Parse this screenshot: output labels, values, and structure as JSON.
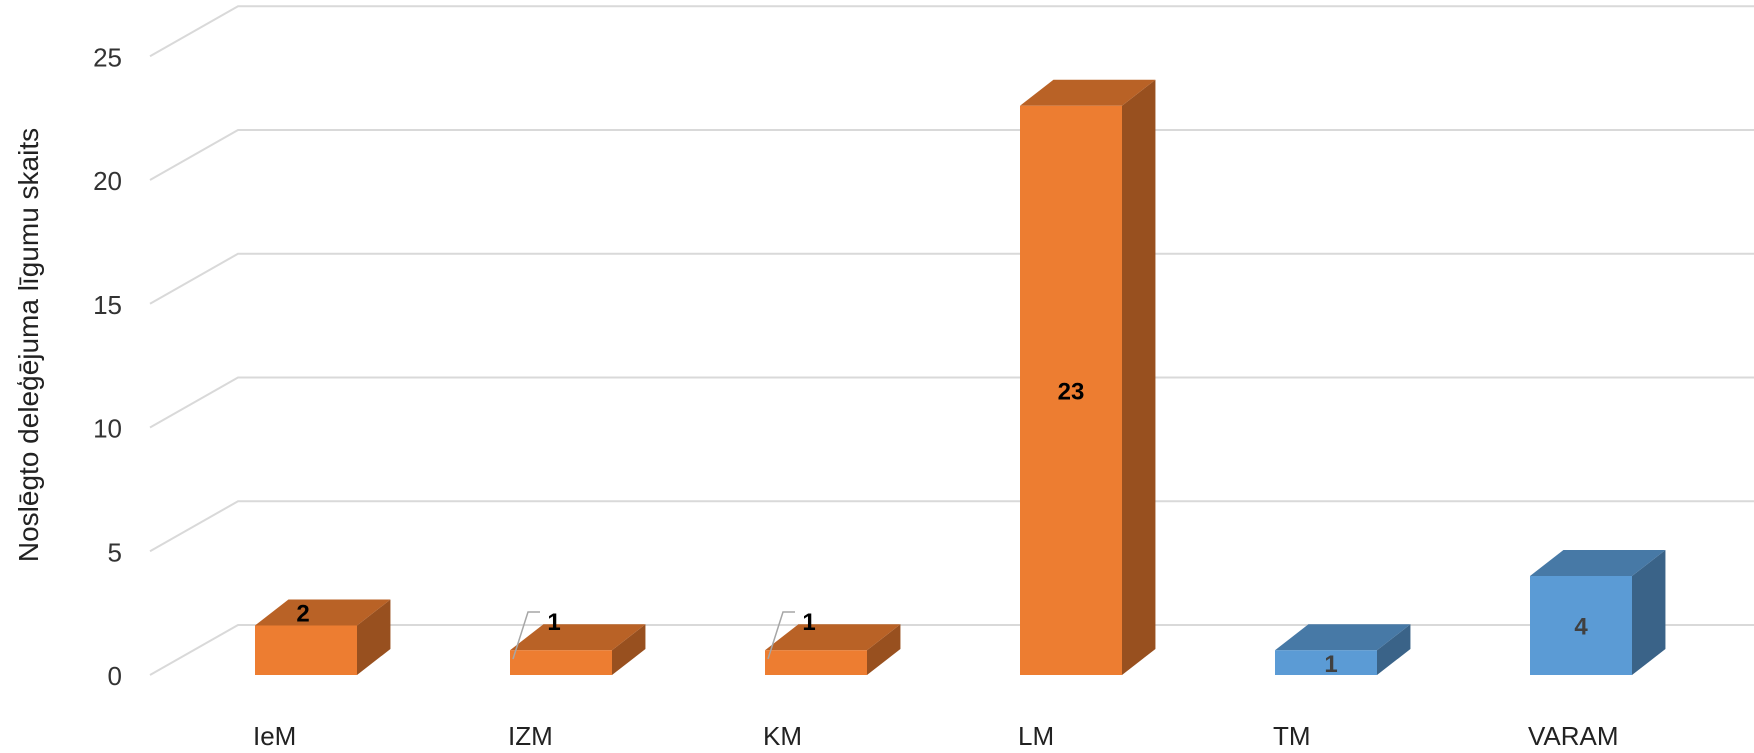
{
  "chart_data": {
    "type": "bar",
    "ylabel": "Noslēgto deleģējuma līgumu skaits",
    "ylim": [
      0,
      25
    ],
    "yticks": [
      0,
      5,
      10,
      15,
      20,
      25
    ],
    "categories": [
      "IeM",
      "IZM",
      "KM",
      "LM",
      "TM",
      "VARAM"
    ],
    "values": [
      2,
      1,
      1,
      23,
      1,
      4
    ],
    "bar_colors": [
      "#ED7D31",
      "#ED7D31",
      "#ED7D31",
      "#ED7D31",
      "#5B9BD5",
      "#5B9BD5"
    ],
    "grid": true,
    "legend": "none"
  }
}
